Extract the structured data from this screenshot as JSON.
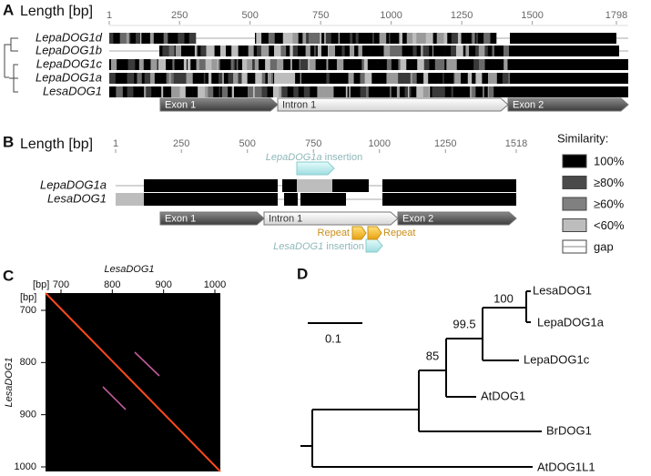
{
  "panel_a": {
    "letter": "A",
    "axis_label": "Length [bp]",
    "ticks": [
      1,
      250,
      500,
      750,
      1000,
      1250,
      1500,
      1798
    ],
    "sequences": [
      "LepaDOG1d",
      "LepaDOG1b",
      "LepaDOG1c",
      "LepaDOG1a",
      "LesaDOG1"
    ],
    "features": [
      "Exon 1",
      "Intron 1",
      "Exon 2"
    ]
  },
  "panel_b": {
    "letter": "B",
    "axis_label": "Length [bp]",
    "ticks": [
      1,
      250,
      500,
      750,
      1000,
      1250,
      1518
    ],
    "sequences": [
      "LepaDOG1a",
      "LesaDOG1"
    ],
    "features": [
      "Exon 1",
      "Intron 1",
      "Exon 2"
    ],
    "insertion_top": {
      "gene": "LepaDOG1a",
      "text": "insertion"
    },
    "insertion_bottom": {
      "gene": "LesaDOG1",
      "text": "insertion"
    },
    "repeats": [
      "Repeat",
      "Repeat"
    ]
  },
  "legend": {
    "title": "Similarity:",
    "items": [
      "100%",
      "≥80%",
      "≥60%",
      "<60%",
      "gap"
    ]
  },
  "panel_c": {
    "letter": "C",
    "x_title": "LesaDOG1",
    "y_title": "LesaDOG1",
    "unit_x": "[bp]",
    "unit_y": "[bp]",
    "xticks": [
      700,
      800,
      900,
      1000
    ],
    "yticks": [
      700,
      800,
      900,
      1000
    ]
  },
  "panel_d": {
    "letter": "D",
    "scale": 0.1,
    "leaves": [
      "LesaDOG1",
      "LepaDOG1a",
      "LepaDOG1c",
      "AtDOG1",
      "BrDOG1",
      "AtDOG1L1"
    ],
    "support": [
      100,
      99.5,
      85
    ]
  }
}
